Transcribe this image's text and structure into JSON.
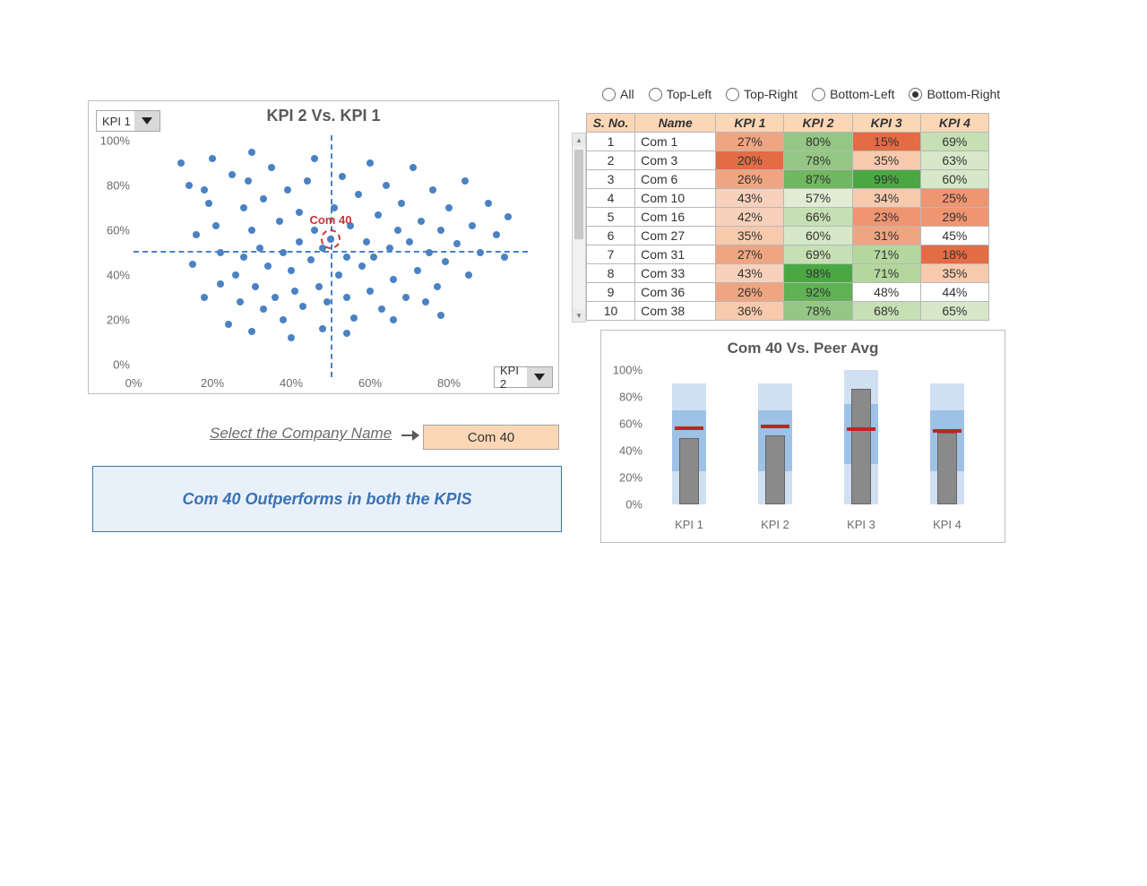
{
  "scatter": {
    "title": "KPI 2 Vs. KPI 1",
    "y_dropdown": "KPI 1",
    "x_dropdown": "KPI 2",
    "xlim": [
      0,
      100
    ],
    "ylim": [
      0,
      100
    ],
    "xticks": [
      0,
      20,
      40,
      60,
      80
    ],
    "yticks": [
      0,
      20,
      40,
      60,
      80,
      100
    ],
    "xtick_labels": [
      "0%",
      "20%",
      "40%",
      "60%",
      "80%"
    ],
    "ytick_labels": [
      "0%",
      "20%",
      "40%",
      "60%",
      "80%",
      "100%"
    ],
    "point_color": "#4a82c3",
    "guide_color": "#4a82c3",
    "highlight": {
      "label": "Com 40",
      "x": 50,
      "y": 56
    },
    "guides": {
      "x": 50,
      "y": 50
    },
    "points": [
      [
        12,
        90
      ],
      [
        14,
        80
      ],
      [
        15,
        45
      ],
      [
        16,
        58
      ],
      [
        18,
        30
      ],
      [
        18,
        78
      ],
      [
        19,
        72
      ],
      [
        20,
        92
      ],
      [
        21,
        62
      ],
      [
        22,
        36
      ],
      [
        22,
        50
      ],
      [
        24,
        18
      ],
      [
        25,
        85
      ],
      [
        26,
        40
      ],
      [
        27,
        28
      ],
      [
        28,
        70
      ],
      [
        28,
        48
      ],
      [
        29,
        82
      ],
      [
        30,
        95
      ],
      [
        30,
        60
      ],
      [
        31,
        35
      ],
      [
        32,
        52
      ],
      [
        33,
        25
      ],
      [
        33,
        74
      ],
      [
        34,
        44
      ],
      [
        35,
        88
      ],
      [
        36,
        30
      ],
      [
        37,
        64
      ],
      [
        38,
        50
      ],
      [
        38,
        20
      ],
      [
        39,
        78
      ],
      [
        40,
        42
      ],
      [
        41,
        33
      ],
      [
        42,
        68
      ],
      [
        42,
        55
      ],
      [
        43,
        26
      ],
      [
        44,
        82
      ],
      [
        45,
        47
      ],
      [
        46,
        60
      ],
      [
        46,
        92
      ],
      [
        47,
        35
      ],
      [
        48,
        52
      ],
      [
        49,
        28
      ],
      [
        50,
        56
      ],
      [
        51,
        70
      ],
      [
        52,
        40
      ],
      [
        53,
        84
      ],
      [
        54,
        48
      ],
      [
        54,
        30
      ],
      [
        55,
        62
      ],
      [
        56,
        21
      ],
      [
        57,
        76
      ],
      [
        58,
        44
      ],
      [
        59,
        55
      ],
      [
        60,
        90
      ],
      [
        60,
        33
      ],
      [
        61,
        48
      ],
      [
        62,
        67
      ],
      [
        63,
        25
      ],
      [
        64,
        80
      ],
      [
        65,
        52
      ],
      [
        66,
        38
      ],
      [
        67,
        60
      ],
      [
        68,
        72
      ],
      [
        69,
        30
      ],
      [
        70,
        55
      ],
      [
        71,
        88
      ],
      [
        72,
        42
      ],
      [
        73,
        64
      ],
      [
        74,
        28
      ],
      [
        75,
        50
      ],
      [
        76,
        78
      ],
      [
        77,
        35
      ],
      [
        78,
        60
      ],
      [
        79,
        46
      ],
      [
        80,
        70
      ],
      [
        82,
        54
      ],
      [
        84,
        82
      ],
      [
        85,
        40
      ],
      [
        86,
        62
      ],
      [
        88,
        50
      ],
      [
        90,
        72
      ],
      [
        92,
        58
      ],
      [
        94,
        48
      ],
      [
        95,
        66
      ],
      [
        78,
        22
      ],
      [
        66,
        20
      ],
      [
        54,
        14
      ],
      [
        48,
        16
      ],
      [
        40,
        12
      ],
      [
        30,
        15
      ]
    ]
  },
  "selector": {
    "prompt": "Select the Company Name",
    "value": "Com 40"
  },
  "message": "Com 40 Outperforms in both the KPIS",
  "radios": {
    "options": [
      "All",
      "Top-Left",
      "Top-Right",
      "Bottom-Left",
      "Bottom-Right"
    ],
    "selected": "Bottom-Right"
  },
  "table": {
    "headers": [
      "S. No.",
      "Name",
      "KPI 1",
      "KPI 2",
      "KPI 3",
      "KPI 4"
    ],
    "rows": [
      {
        "sno": 1,
        "name": "Com 1",
        "kpi": [
          [
            "27%",
            "#f0a582"
          ],
          [
            "80%",
            "#94c784"
          ],
          [
            "15%",
            "#e36c44"
          ],
          [
            "69%",
            "#c6e0b4"
          ]
        ]
      },
      {
        "sno": 2,
        "name": "Com 3",
        "kpi": [
          [
            "20%",
            "#e36c44"
          ],
          [
            "78%",
            "#94c784"
          ],
          [
            "35%",
            "#f7caae"
          ],
          [
            "63%",
            "#d6e8c8"
          ]
        ]
      },
      {
        "sno": 3,
        "name": "Com 6",
        "kpi": [
          [
            "26%",
            "#f0a582"
          ],
          [
            "87%",
            "#6fb85f"
          ],
          [
            "99%",
            "#4aa843"
          ],
          [
            "60%",
            "#d6e8c8"
          ]
        ]
      },
      {
        "sno": 4,
        "name": "Com 10",
        "kpi": [
          [
            "43%",
            "#f7d1bc"
          ],
          [
            "57%",
            "#e0edd4"
          ],
          [
            "34%",
            "#f7caae"
          ],
          [
            "25%",
            "#ef9572"
          ]
        ]
      },
      {
        "sno": 5,
        "name": "Com 16",
        "kpi": [
          [
            "42%",
            "#f7d1bc"
          ],
          [
            "66%",
            "#c6e0b4"
          ],
          [
            "23%",
            "#ef9572"
          ],
          [
            "29%",
            "#ef9572"
          ]
        ]
      },
      {
        "sno": 6,
        "name": "Com 27",
        "kpi": [
          [
            "35%",
            "#f7caae"
          ],
          [
            "60%",
            "#d6e8c8"
          ],
          [
            "31%",
            "#f0a582"
          ],
          [
            "45%",
            "#ffffff"
          ]
        ]
      },
      {
        "sno": 7,
        "name": "Com 31",
        "kpi": [
          [
            "27%",
            "#f0a582"
          ],
          [
            "69%",
            "#c6e0b4"
          ],
          [
            "71%",
            "#b4d79e"
          ],
          [
            "18%",
            "#e36c44"
          ]
        ]
      },
      {
        "sno": 8,
        "name": "Com 33",
        "kpi": [
          [
            "43%",
            "#f7d1bc"
          ],
          [
            "98%",
            "#4aa843"
          ],
          [
            "71%",
            "#b4d79e"
          ],
          [
            "35%",
            "#f7caae"
          ]
        ]
      },
      {
        "sno": 9,
        "name": "Com 36",
        "kpi": [
          [
            "26%",
            "#f0a582"
          ],
          [
            "92%",
            "#5fb254"
          ],
          [
            "48%",
            "#ffffff"
          ],
          [
            "44%",
            "#ffffff"
          ]
        ]
      },
      {
        "sno": 10,
        "name": "Com 38",
        "kpi": [
          [
            "36%",
            "#f7caae"
          ],
          [
            "78%",
            "#94c784"
          ],
          [
            "68%",
            "#c6e0b4"
          ],
          [
            "65%",
            "#d6e8c8"
          ]
        ]
      }
    ]
  },
  "peer": {
    "title": "Com 40 Vs. Peer Avg",
    "yticks": [
      0,
      20,
      40,
      60,
      80,
      100
    ],
    "ytick_labels": [
      "0%",
      "20%",
      "40%",
      "60%",
      "80%",
      "100%"
    ],
    "categories": [
      "KPI 1",
      "KPI 2",
      "KPI 3",
      "KPI 4"
    ],
    "band_color_outer": "#cfe0f2",
    "band_color_inner": "#9ec1e6",
    "bar_color": "#8a8a8a",
    "marker_color": "#c52222",
    "series": [
      {
        "outer": [
          0,
          90
        ],
        "inner": [
          25,
          70
        ],
        "bar": 48,
        "red": 57
      },
      {
        "outer": [
          0,
          90
        ],
        "inner": [
          25,
          70
        ],
        "bar": 50,
        "red": 58
      },
      {
        "outer": [
          0,
          100
        ],
        "inner": [
          30,
          75
        ],
        "bar": 85,
        "red": 56
      },
      {
        "outer": [
          0,
          90
        ],
        "inner": [
          25,
          70
        ],
        "bar": 52,
        "red": 55
      }
    ]
  },
  "colors": {
    "card_border": "#bfbfbf",
    "text_muted": "#6b6b6b",
    "accent_blue": "#3a72b5",
    "sel_bg": "#fbd7b6"
  }
}
